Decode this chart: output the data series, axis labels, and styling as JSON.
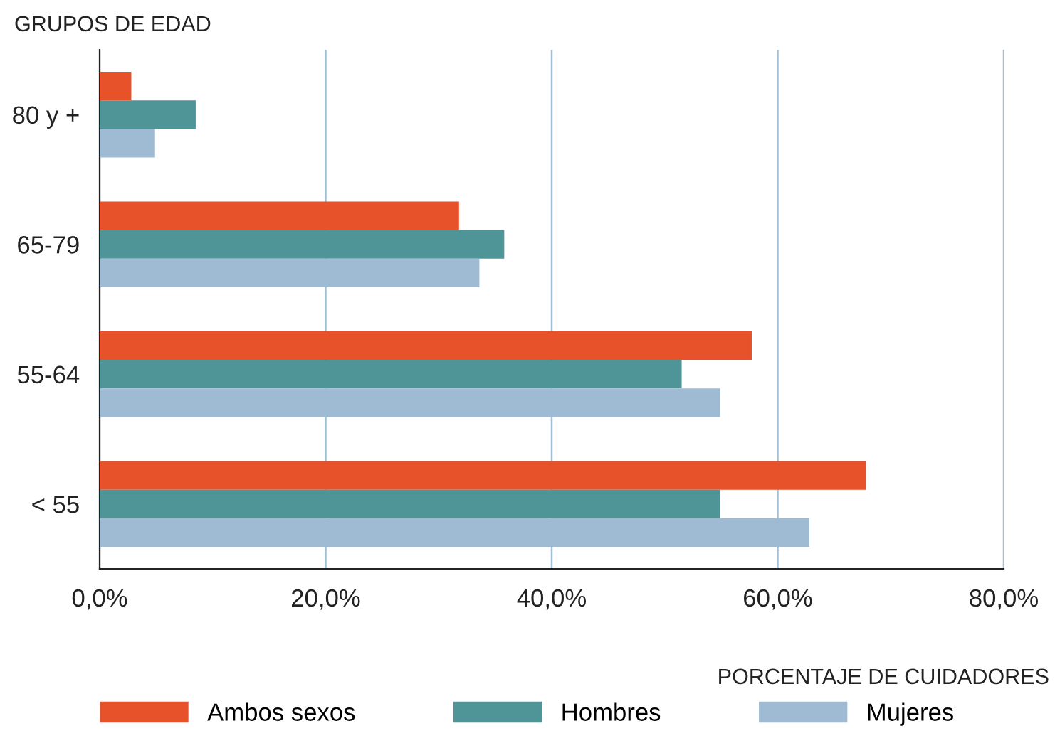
{
  "chart_data": {
    "type": "bar",
    "orientation": "horizontal",
    "ylabel": "GRUPOS DE EDAD",
    "xlabel": "PORCENTAJE DE CUIDADORES",
    "categories": [
      "80 y +",
      "65-79",
      "55-64",
      "< 55"
    ],
    "series": [
      {
        "name": "Ambos sexos",
        "color": "#e8522a",
        "values": [
          2.8,
          31.8,
          57.7,
          67.8
        ]
      },
      {
        "name": "Hombres",
        "color": "#4f9598",
        "values": [
          8.5,
          35.8,
          51.5,
          54.9
        ]
      },
      {
        "name": "Mujeres",
        "color": "#9fbbd3",
        "values": [
          4.9,
          33.6,
          54.9,
          62.8
        ]
      }
    ],
    "xlim": [
      0,
      80
    ],
    "xticks": [
      {
        "value": 0,
        "label": "0,0%"
      },
      {
        "value": 20,
        "label": "20,0%"
      },
      {
        "value": 40,
        "label": "40,0%"
      },
      {
        "value": 60,
        "label": "60,0%"
      },
      {
        "value": 80,
        "label": "80,0%"
      }
    ],
    "grid": "x",
    "legend": "bottom"
  }
}
